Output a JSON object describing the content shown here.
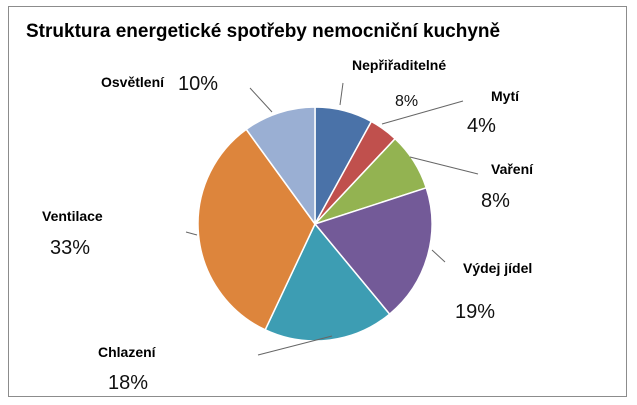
{
  "chart_data": {
    "type": "pie",
    "title": "Struktura energetické spotřeby nemocniční kuchyně",
    "slices": [
      {
        "label": "Nepřiřaditelné",
        "value": 8,
        "display": "8%",
        "color": "#4a72a8"
      },
      {
        "label": "Mytí",
        "value": 4,
        "display": "4%",
        "color": "#c0504d"
      },
      {
        "label": "Vaření",
        "value": 8,
        "display": "8%",
        "color": "#93b351"
      },
      {
        "label": "Výdej jídel",
        "value": 19,
        "display": "19%",
        "color": "#735a98"
      },
      {
        "label": "Chlazení",
        "value": 18,
        "display": "18%",
        "color": "#3d9db3"
      },
      {
        "label": "Ventilace",
        "value": 33,
        "display": "33%",
        "color": "#dd853c"
      },
      {
        "label": "Osvětlení",
        "value": 10,
        "display": "10%",
        "color": "#9aafd3"
      }
    ]
  }
}
